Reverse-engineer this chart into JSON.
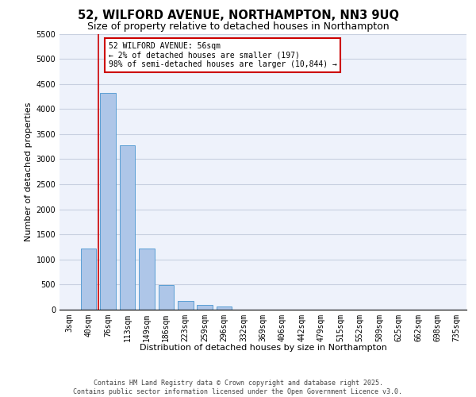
{
  "title_line1": "52, WILFORD AVENUE, NORTHAMPTON, NN3 9UQ",
  "title_line2": "Size of property relative to detached houses in Northampton",
  "xlabel": "Distribution of detached houses by size in Northampton",
  "ylabel": "Number of detached properties",
  "categories": [
    "3sqm",
    "40sqm",
    "76sqm",
    "113sqm",
    "149sqm",
    "186sqm",
    "223sqm",
    "259sqm",
    "296sqm",
    "332sqm",
    "369sqm",
    "406sqm",
    "442sqm",
    "479sqm",
    "515sqm",
    "552sqm",
    "589sqm",
    "625sqm",
    "662sqm",
    "698sqm",
    "735sqm"
  ],
  "values": [
    0,
    1220,
    4320,
    3280,
    1220,
    490,
    170,
    100,
    60,
    0,
    0,
    0,
    0,
    0,
    0,
    0,
    0,
    0,
    0,
    0,
    0
  ],
  "bar_color": "#aec6e8",
  "bar_edge_color": "#5a9fd4",
  "marker_color": "#cc0000",
  "annotation_text": "52 WILFORD AVENUE: 56sqm\n← 2% of detached houses are smaller (197)\n98% of semi-detached houses are larger (10,844) →",
  "annotation_box_color": "#ffffff",
  "annotation_box_edge_color": "#cc0000",
  "ylim": [
    0,
    5500
  ],
  "yticks": [
    0,
    500,
    1000,
    1500,
    2000,
    2500,
    3000,
    3500,
    4000,
    4500,
    5000,
    5500
  ],
  "grid_color": "#c8d0e0",
  "background_color": "#eef2fb",
  "footer_line1": "Contains HM Land Registry data © Crown copyright and database right 2025.",
  "footer_line2": "Contains public sector information licensed under the Open Government Licence v3.0.",
  "title_fontsize": 10.5,
  "subtitle_fontsize": 9,
  "axis_label_fontsize": 8,
  "tick_fontsize": 7,
  "annotation_fontsize": 7,
  "footer_fontsize": 6
}
